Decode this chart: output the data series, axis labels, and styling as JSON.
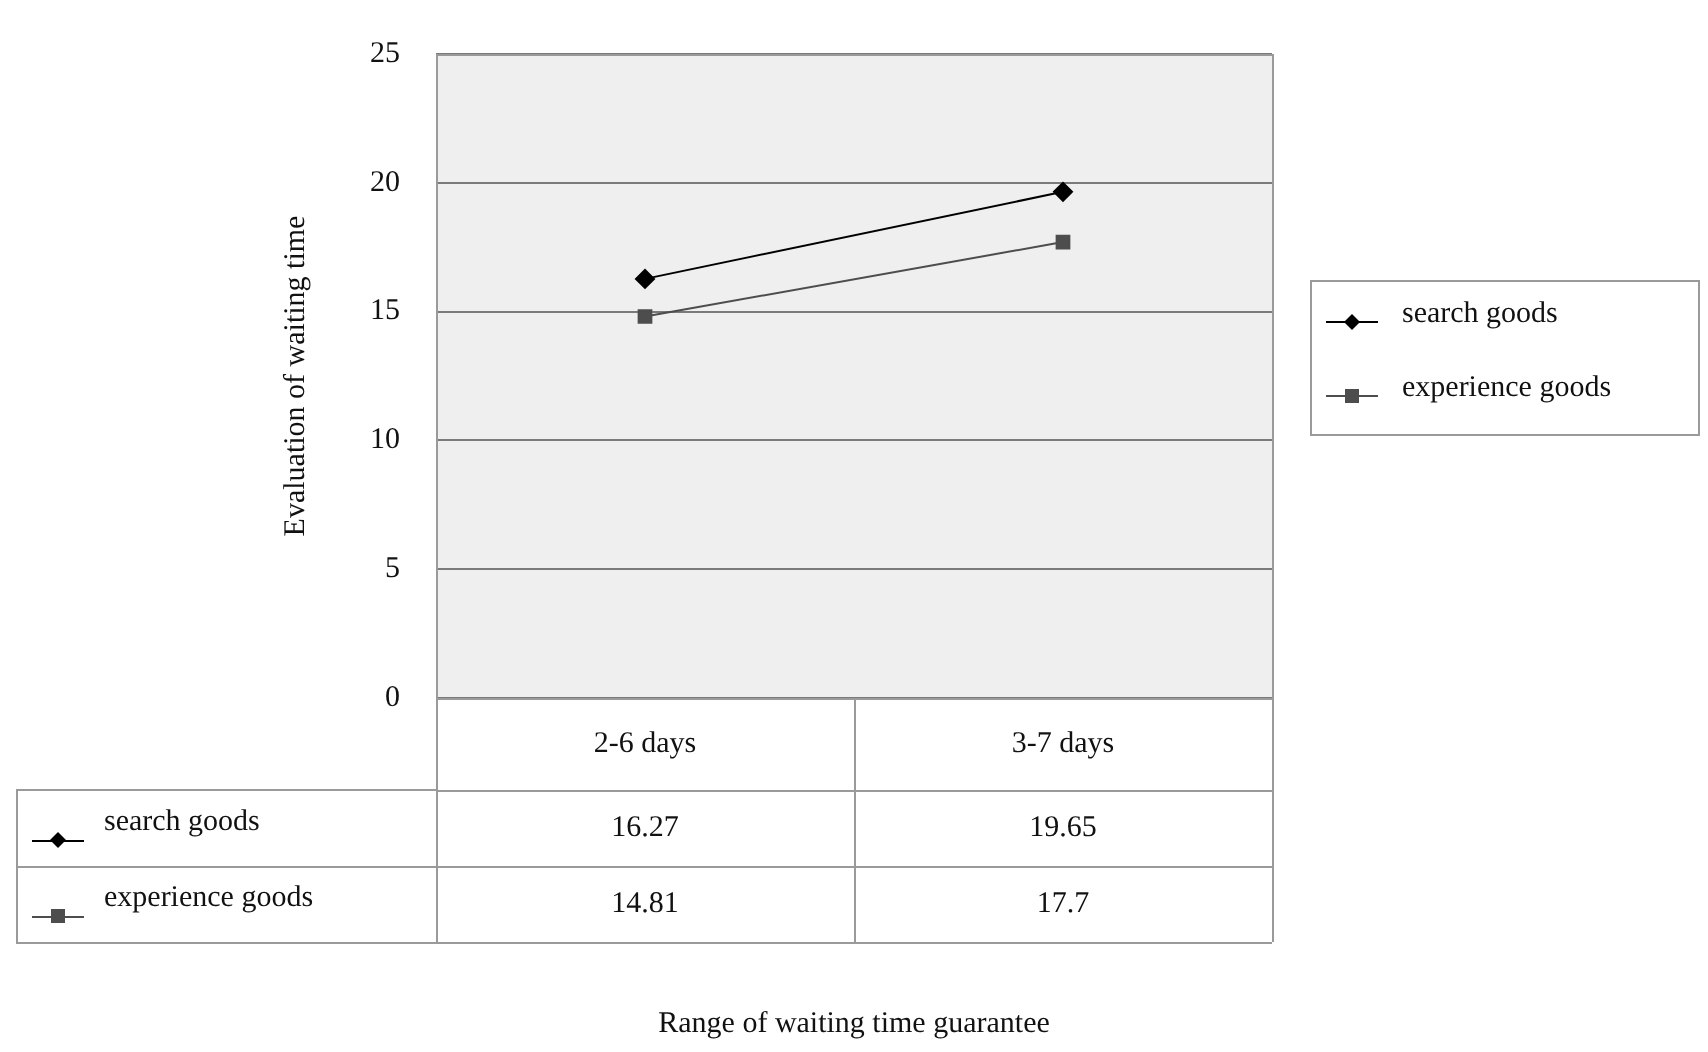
{
  "chart_data": {
    "type": "line",
    "annotations": [
      "Range of waiting time guarantee"
    ],
    "ylabel": "Evaluation of waiting time",
    "categories": [
      "2-6 days",
      "3-7 days"
    ],
    "series": [
      {
        "name": "search goods",
        "color": "#000000",
        "marker": "diamond",
        "values": [
          16.27,
          19.65
        ]
      },
      {
        "name": "experience goods",
        "color": "#4d4d4d",
        "marker": "square",
        "values": [
          14.81,
          17.7
        ]
      }
    ],
    "ylim": [
      0,
      25
    ],
    "yticks": [
      0,
      5,
      10,
      15,
      20,
      25
    ],
    "grid": "y",
    "legend": "right",
    "data_labels": true
  }
}
